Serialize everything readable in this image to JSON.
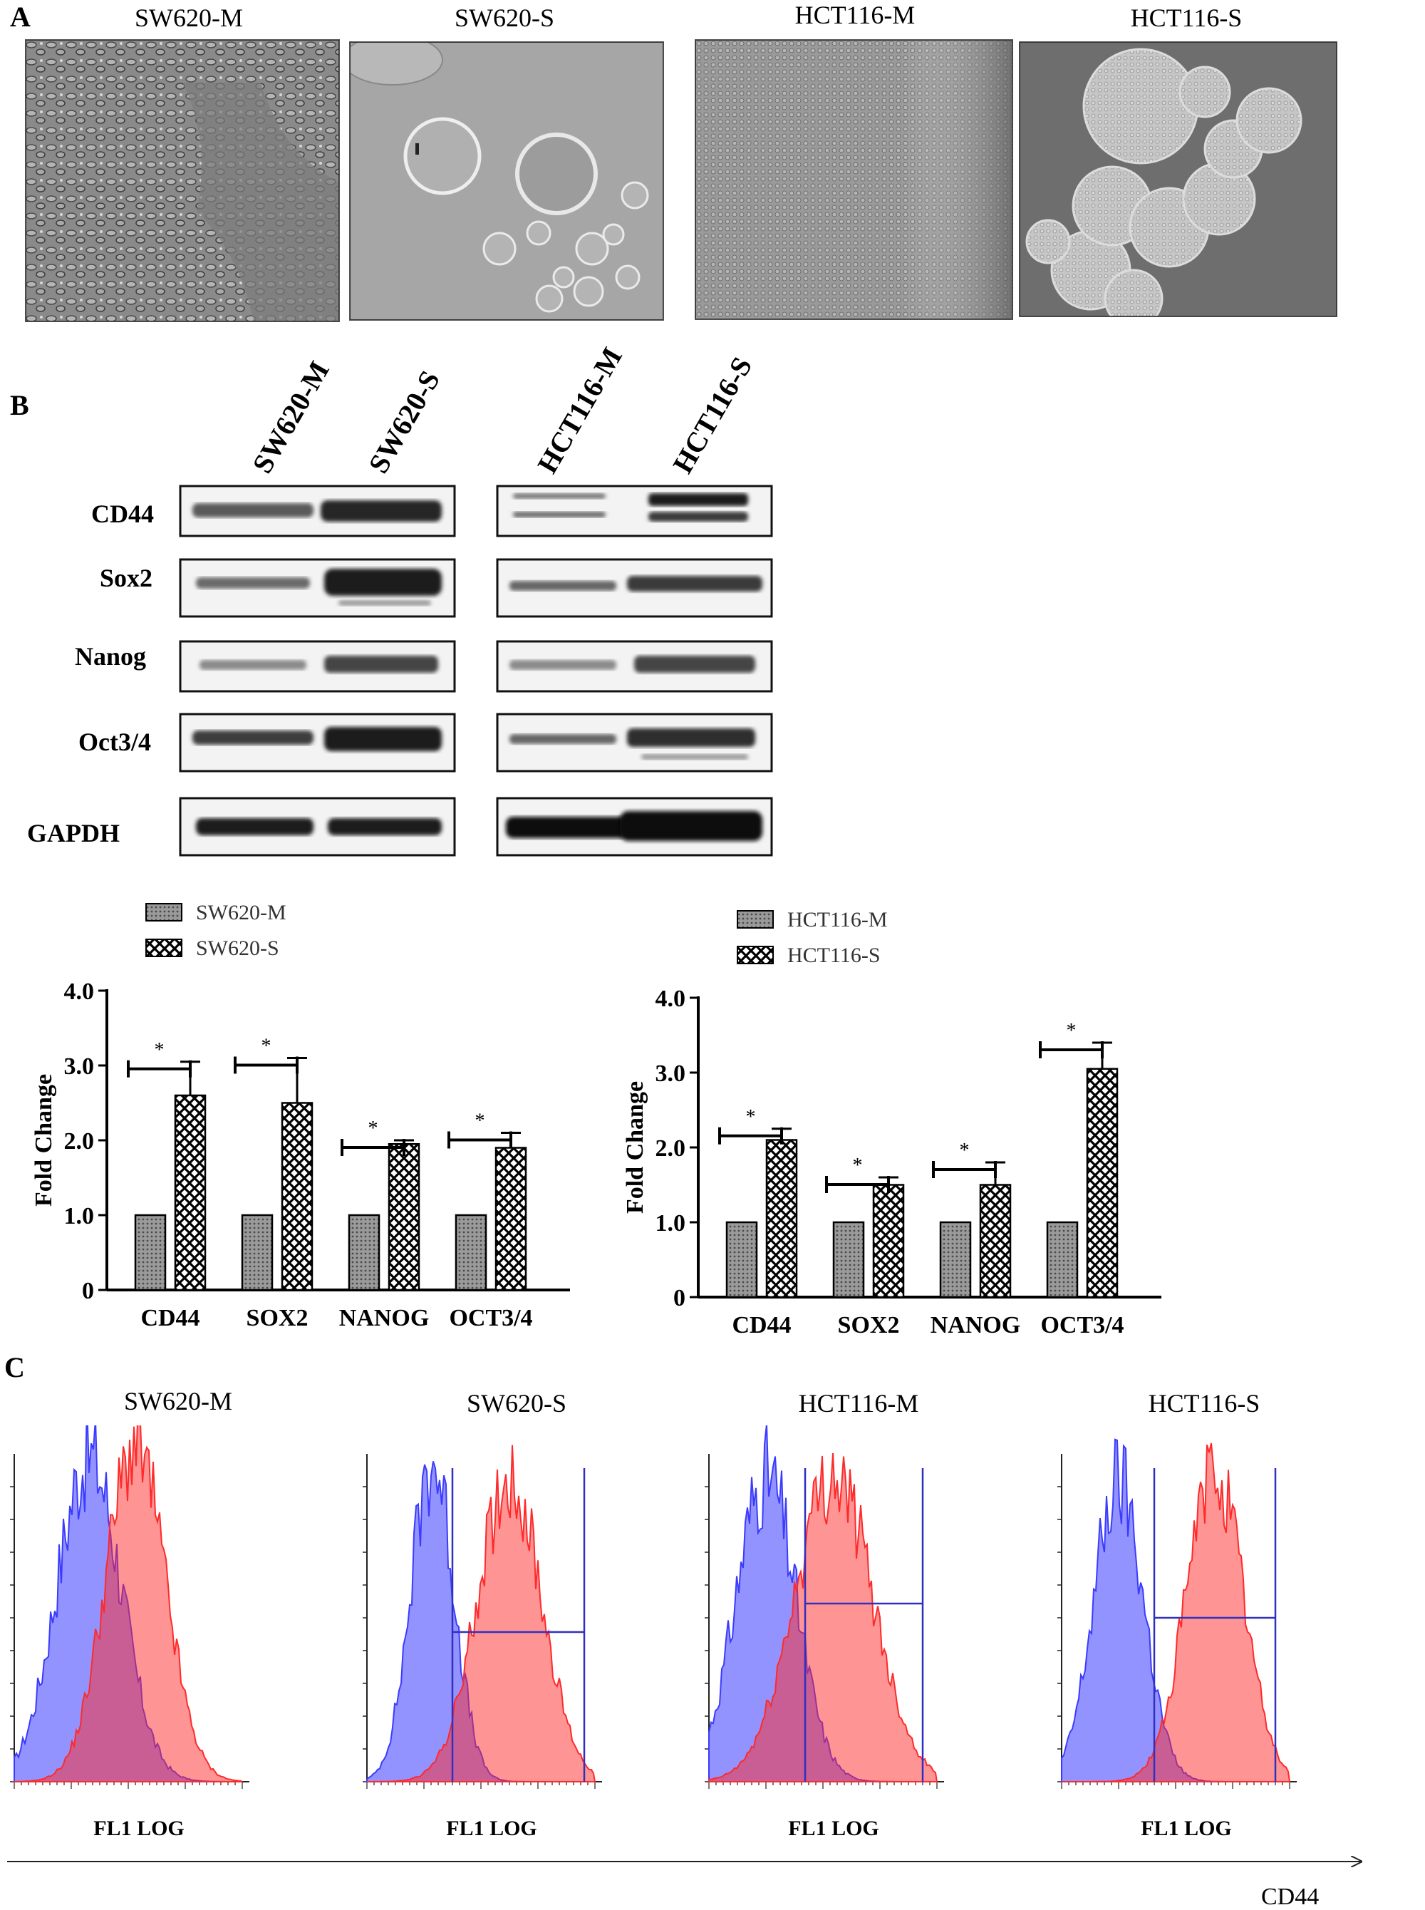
{
  "panels": {
    "A": {
      "letter": "A",
      "images": [
        {
          "label": "SW620-M"
        },
        {
          "label": "SW620-S"
        },
        {
          "label": "HCT116-M"
        },
        {
          "label": "HCT116-S"
        }
      ]
    },
    "B": {
      "letter": "B",
      "blot_lanes_left": [
        "SW620-M",
        "SW620-S"
      ],
      "blot_lanes_right": [
        "HCT116-M",
        "HCT116-S"
      ],
      "blot_rows": [
        "CD44",
        "Sox2",
        "Nanog",
        "Oct3/4",
        "GAPDH"
      ]
    },
    "C": {
      "letter": "C",
      "histograms": [
        {
          "label": "SW620-M",
          "xlabel": "FL1 LOG"
        },
        {
          "label": "SW620-S",
          "xlabel": "FL1 LOG"
        },
        {
          "label": "HCT116-M",
          "xlabel": "FL1 LOG"
        },
        {
          "label": "HCT116-S",
          "xlabel": "FL1 LOG"
        }
      ],
      "arrow_label": "CD44"
    }
  },
  "chart_data": [
    {
      "type": "bar",
      "title": "",
      "xlabel": "",
      "ylabel": "Fold Change",
      "ylim": [
        0,
        4.0
      ],
      "yticks": [
        "0",
        "1.0",
        "2.0",
        "3.0",
        "4.0"
      ],
      "categories": [
        "CD44",
        "SOX2",
        "NANOG",
        "OCT3/4"
      ],
      "series": [
        {
          "name": "SW620-M",
          "values": [
            1.0,
            1.0,
            1.0,
            1.0
          ],
          "errors": [
            0,
            0,
            0,
            0
          ]
        },
        {
          "name": "SW620-S",
          "values": [
            2.6,
            2.5,
            1.95,
            1.9
          ],
          "errors": [
            0.45,
            0.6,
            0.05,
            0.2
          ]
        }
      ],
      "significance": [
        "*",
        "*",
        "*",
        "*"
      ],
      "legend": "top-left",
      "grid": false
    },
    {
      "type": "bar",
      "title": "",
      "xlabel": "",
      "ylabel": "Fold Change",
      "ylim": [
        0,
        4.0
      ],
      "yticks": [
        "0",
        "1.0",
        "2.0",
        "3.0",
        "4.0"
      ],
      "categories": [
        "CD44",
        "SOX2",
        "NANOG",
        "OCT3/4"
      ],
      "series": [
        {
          "name": "HCT116-M",
          "values": [
            1.0,
            1.0,
            1.0,
            1.0
          ],
          "errors": [
            0,
            0,
            0,
            0
          ]
        },
        {
          "name": "HCT116-S",
          "values": [
            2.1,
            1.5,
            1.5,
            3.05
          ],
          "errors": [
            0.15,
            0.1,
            0.3,
            0.35
          ]
        }
      ],
      "significance": [
        "*",
        "*",
        "*",
        "*"
      ],
      "legend": "top-left",
      "grid": false
    }
  ],
  "colors": {
    "isotype": "#3b3bff",
    "cd44": "#ff2a2a",
    "gate": "#3030c0"
  }
}
